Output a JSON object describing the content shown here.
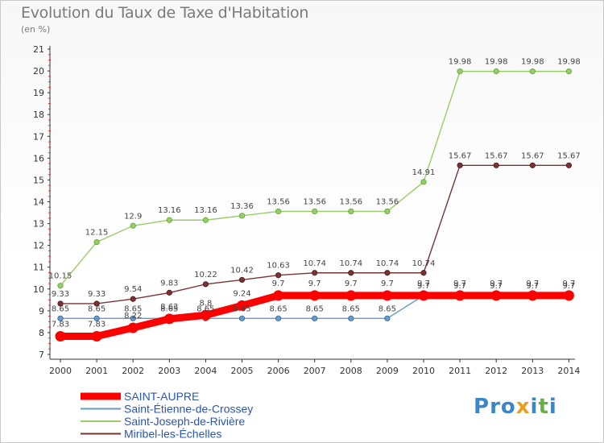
{
  "title": "Evolution du Taux de Taxe d'Habitation",
  "subtitle": "(en %)",
  "logo": "Proxiti",
  "chart_data": {
    "type": "line",
    "x": [
      "2000",
      "2001",
      "2002",
      "2003",
      "2004",
      "2005",
      "2006",
      "2007",
      "2008",
      "2009",
      "2010",
      "2011",
      "2012",
      "2013",
      "2014"
    ],
    "ylim": [
      7,
      21
    ],
    "yticks": [
      7,
      8,
      9,
      10,
      11,
      12,
      13,
      14,
      15,
      16,
      17,
      18,
      19,
      20,
      21
    ],
    "grid": false,
    "legend_position": "bottom-left",
    "series": [
      {
        "name": "SAINT-AUPRE",
        "color": "#ff0000",
        "values": [
          7.83,
          7.83,
          8.22,
          8.63,
          8.8,
          9.24,
          9.7,
          9.7,
          9.7,
          9.7,
          9.7,
          9.7,
          9.7,
          9.7,
          9.7
        ]
      },
      {
        "name": "Saint-Étienne-de-Crossey",
        "color": "#6699cc",
        "values": [
          8.65,
          8.65,
          8.65,
          8.65,
          8.65,
          8.65,
          8.65,
          8.65,
          8.65,
          8.65,
          9.7,
          9.7,
          9.7,
          9.7,
          9.7
        ]
      },
      {
        "name": "Saint-Joseph-de-Rivière",
        "color": "#99cc66",
        "values": [
          10.15,
          12.15,
          12.9,
          13.16,
          13.16,
          13.36,
          13.56,
          13.56,
          13.56,
          13.56,
          14.91,
          19.98,
          19.98,
          19.98,
          19.98
        ]
      },
      {
        "name": "Miribel-les-Échelles",
        "color": "#7a3333",
        "values": [
          9.33,
          9.33,
          9.54,
          9.83,
          10.22,
          10.42,
          10.63,
          10.74,
          10.74,
          10.74,
          10.74,
          15.67,
          15.67,
          15.67,
          15.67
        ]
      }
    ]
  }
}
